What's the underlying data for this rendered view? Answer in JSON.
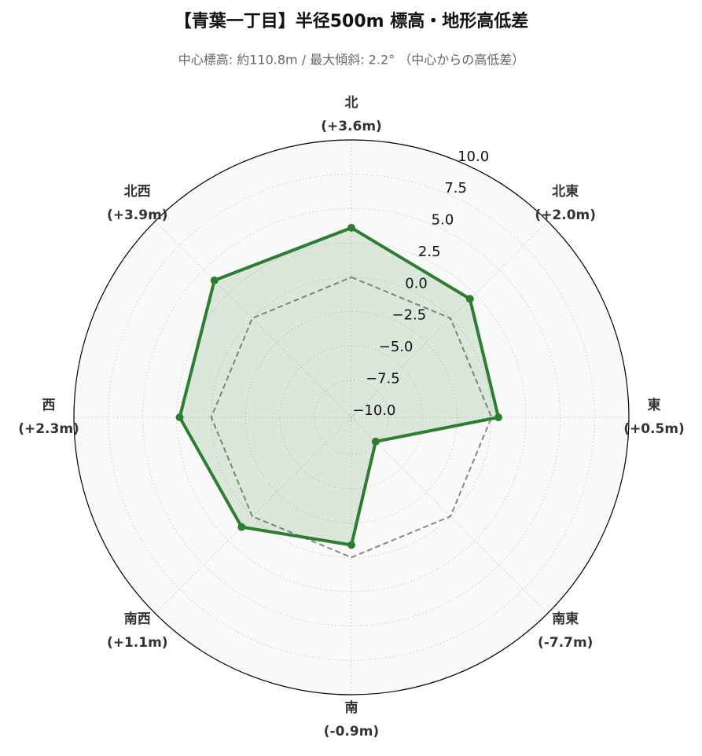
{
  "chart_data": {
    "type": "radar",
    "title": "【青葉一丁目】半径500m 標高・地形高低差",
    "subtitle": "中心標高: 約110.8m / 最大傾斜: 2.2° （中心からの高低差）",
    "categories": [
      "北",
      "北東",
      "東",
      "南東",
      "南",
      "南西",
      "西",
      "北西"
    ],
    "values": [
      3.6,
      2.0,
      0.5,
      -7.7,
      -0.9,
      1.1,
      2.3,
      3.9
    ],
    "value_labels": [
      "(+3.6m)",
      "(+2.0m)",
      "(+0.5m)",
      "(-7.7m)",
      "(-0.9m)",
      "(+1.1m)",
      "(+2.3m)",
      "(+3.9m)"
    ],
    "color": "#2e7d32",
    "baseline": 0,
    "ylim": [
      -10.2,
      10
    ],
    "yticks": [
      {
        "value": -10,
        "label": "−10.0"
      },
      {
        "value": -7.5,
        "label": "−7.5"
      },
      {
        "value": -5,
        "label": "−5.0"
      },
      {
        "value": -2.5,
        "label": "−2.5"
      },
      {
        "value": 0,
        "label": "0.0"
      },
      {
        "value": 2.5,
        "label": "2.5"
      },
      {
        "value": 5,
        "label": "5.0"
      },
      {
        "value": 7.5,
        "label": "7.5"
      },
      {
        "value": 10,
        "label": "10.0"
      }
    ],
    "grid": true
  }
}
